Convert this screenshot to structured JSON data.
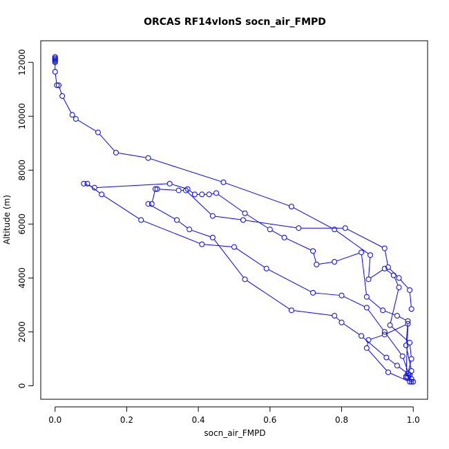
{
  "chart_data": {
    "type": "line",
    "title": "ORCAS RF14vlonS socn_air_FMPD",
    "xlabel": "socn_air_FMPD",
    "ylabel": "Altitude (m)",
    "xlim": [
      -0.04,
      1.04
    ],
    "ylim": [
      -500,
      12800
    ],
    "x_ticks": [
      0.0,
      0.2,
      0.4,
      0.6,
      0.8,
      1.0
    ],
    "x_tick_labels": [
      "0.0",
      "0.2",
      "0.4",
      "0.6",
      "0.8",
      "1.0"
    ],
    "y_ticks": [
      0,
      2000,
      4000,
      6000,
      8000,
      10000,
      12000
    ],
    "y_tick_labels": [
      "0",
      "2000",
      "4000",
      "6000",
      "8000",
      "10000",
      "12000"
    ],
    "grid": false,
    "legend": "none",
    "series_color": "#0000ff",
    "marker": "open-circle",
    "series": [
      {
        "x": [
          0.0,
          0.0,
          0.0,
          0.0,
          0.0,
          0.0,
          0.0,
          0.0,
          0.0,
          0.005,
          0.01,
          0.02,
          0.048,
          0.058,
          0.12,
          0.17,
          0.26,
          0.47,
          0.66,
          0.78,
          0.88,
          0.875,
          0.92,
          0.945,
          0.96,
          0.935,
          0.99,
          0.995,
          0.985,
          0.985,
          0.98,
          0.995,
          1.0,
          0.995,
          0.97,
          0.92,
          0.87,
          0.8,
          0.72,
          0.59,
          0.5,
          0.41,
          0.24,
          0.13,
          0.09,
          0.08,
          0.11,
          0.32,
          0.37,
          0.39,
          0.41,
          0.43,
          0.45,
          0.53,
          0.6,
          0.64,
          0.72,
          0.73,
          0.78,
          0.855,
          0.87,
          0.915,
          0.955,
          0.985,
          0.98,
          0.995,
          0.99,
          0.93,
          0.87,
          0.875,
          0.92,
          0.985,
          0.98,
          0.99,
          0.955,
          0.925,
          0.855,
          0.8,
          0.78,
          0.66,
          0.53,
          0.44,
          0.375,
          0.34,
          0.26,
          0.27,
          0.28,
          0.285,
          0.345,
          0.365,
          0.44,
          0.525,
          0.68,
          0.81,
          0.92,
          0.93,
          0.96,
          0.99,
          0.995
        ]
      }
    ],
    "y": [
      12200,
      12150,
      12100,
      12050,
      12000,
      12050,
      12100,
      12150,
      11650,
      11150,
      11150,
      10750,
      10050,
      9900,
      9400,
      8650,
      8450,
      7550,
      6650,
      5800,
      4850,
      3950,
      4350,
      4100,
      3650,
      2250,
      1600,
      1000,
      450,
      300,
      350,
      250,
      150,
      150,
      1100,
      2000,
      2900,
      3350,
      3450,
      4350,
      5150,
      5250,
      6150,
      7100,
      7500,
      7500,
      7350,
      7500,
      7300,
      7100,
      7100,
      7100,
      7150,
      6400,
      5800,
      5500,
      5000,
      4500,
      4600,
      4950,
      3300,
      2800,
      2600,
      2400,
      1500,
      550,
      150,
      500,
      1400,
      1700,
      1900,
      2300,
      300,
      400,
      750,
      1050,
      1850,
      2350,
      2600,
      2800,
      3950,
      5500,
      5800,
      6150,
      6750,
      6750,
      7300,
      7300,
      7250,
      7250,
      6300,
      6150,
      5850,
      5850,
      5100,
      4400,
      4000,
      3550,
      2850
    ]
  }
}
